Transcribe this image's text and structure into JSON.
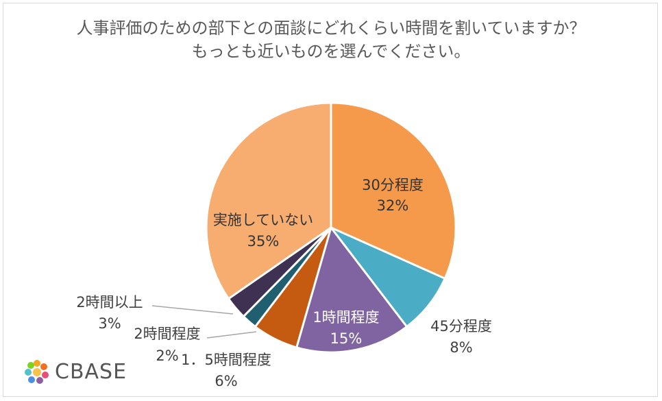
{
  "chart_data": {
    "type": "pie",
    "title_line1": "人事評価のための部下との面談にどれくらい時間を割いていますか？",
    "title_line2": "もっとも近いものを選んでください。",
    "slices": [
      {
        "name": "30分程度",
        "value": 32,
        "label": "32%",
        "color": "#f5994a"
      },
      {
        "name": "45分程度",
        "value": 8,
        "label": "8%",
        "color": "#4bacc6"
      },
      {
        "name": "1時間程度",
        "value": 15,
        "label": "15%",
        "color": "#8064a2"
      },
      {
        "name": "1.5時間程度",
        "value": 6,
        "label": "6%",
        "color": "#c55a11"
      },
      {
        "name": "2時間程度",
        "value": 2,
        "label": "2%",
        "color": "#1f5f6f"
      },
      {
        "name": "2時間以上",
        "value": 3,
        "label": "3%",
        "color": "#3f3151"
      },
      {
        "name": "実施していない",
        "value": 35,
        "label": "35%",
        "color": "#f8ad70"
      }
    ],
    "display_names": [
      "30分程度",
      "45分程度",
      "1時間程度",
      "1．5時間程度",
      "2時間程度",
      "2時間以上",
      "実施していない"
    ]
  },
  "logo": {
    "text": "CBASE"
  }
}
